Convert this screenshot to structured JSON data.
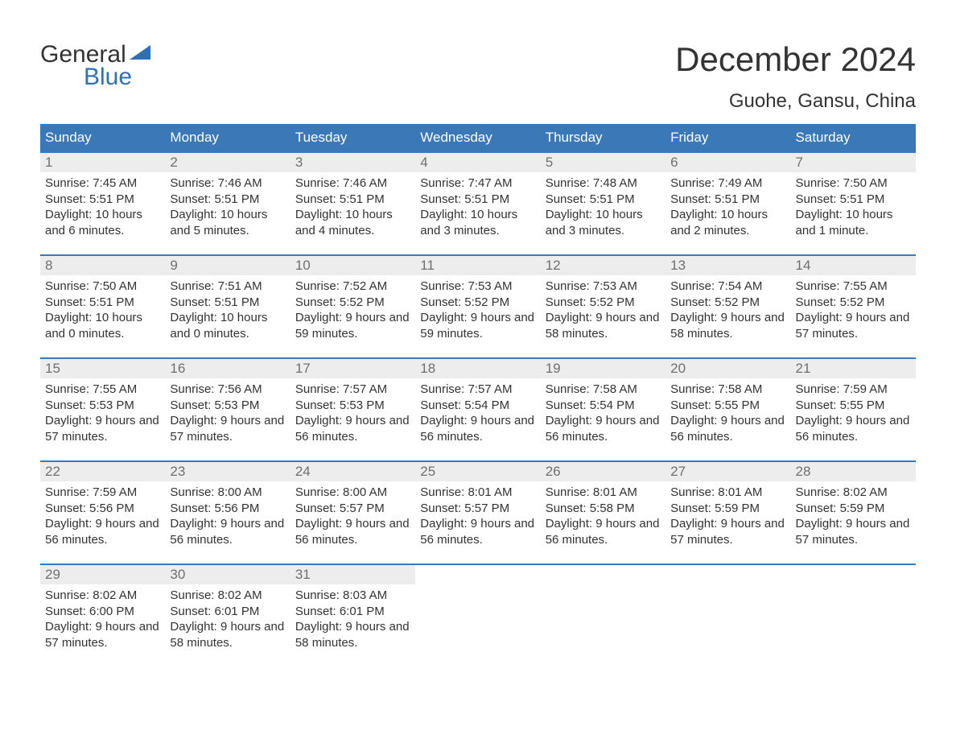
{
  "logo": {
    "text1": "General",
    "text2": "Blue",
    "accent_color": "#2f6fb3"
  },
  "title": "December 2024",
  "location": "Guohe, Gansu, China",
  "colors": {
    "header_bg": "#3a78b8",
    "header_text": "#ffffff",
    "daynum_bg": "#ededed",
    "daynum_text": "#6f6f6f",
    "body_text": "#333333",
    "page_bg": "#ffffff",
    "week_border": "#3a78b8"
  },
  "typography": {
    "title_fontsize": 42,
    "location_fontsize": 24,
    "header_fontsize": 17,
    "daynum_fontsize": 17,
    "body_fontsize": 15,
    "font_family": "Arial, Helvetica, sans-serif"
  },
  "day_headers": [
    "Sunday",
    "Monday",
    "Tuesday",
    "Wednesday",
    "Thursday",
    "Friday",
    "Saturday"
  ],
  "labels": {
    "sunrise": "Sunrise: ",
    "sunset": "Sunset: ",
    "daylight": "Daylight: "
  },
  "weeks": [
    [
      {
        "num": "1",
        "sunrise": "7:45 AM",
        "sunset": "5:51 PM",
        "daylight": "10 hours and 6 minutes."
      },
      {
        "num": "2",
        "sunrise": "7:46 AM",
        "sunset": "5:51 PM",
        "daylight": "10 hours and 5 minutes."
      },
      {
        "num": "3",
        "sunrise": "7:46 AM",
        "sunset": "5:51 PM",
        "daylight": "10 hours and 4 minutes."
      },
      {
        "num": "4",
        "sunrise": "7:47 AM",
        "sunset": "5:51 PM",
        "daylight": "10 hours and 3 minutes."
      },
      {
        "num": "5",
        "sunrise": "7:48 AM",
        "sunset": "5:51 PM",
        "daylight": "10 hours and 3 minutes."
      },
      {
        "num": "6",
        "sunrise": "7:49 AM",
        "sunset": "5:51 PM",
        "daylight": "10 hours and 2 minutes."
      },
      {
        "num": "7",
        "sunrise": "7:50 AM",
        "sunset": "5:51 PM",
        "daylight": "10 hours and 1 minute."
      }
    ],
    [
      {
        "num": "8",
        "sunrise": "7:50 AM",
        "sunset": "5:51 PM",
        "daylight": "10 hours and 0 minutes."
      },
      {
        "num": "9",
        "sunrise": "7:51 AM",
        "sunset": "5:51 PM",
        "daylight": "10 hours and 0 minutes."
      },
      {
        "num": "10",
        "sunrise": "7:52 AM",
        "sunset": "5:52 PM",
        "daylight": "9 hours and 59 minutes."
      },
      {
        "num": "11",
        "sunrise": "7:53 AM",
        "sunset": "5:52 PM",
        "daylight": "9 hours and 59 minutes."
      },
      {
        "num": "12",
        "sunrise": "7:53 AM",
        "sunset": "5:52 PM",
        "daylight": "9 hours and 58 minutes."
      },
      {
        "num": "13",
        "sunrise": "7:54 AM",
        "sunset": "5:52 PM",
        "daylight": "9 hours and 58 minutes."
      },
      {
        "num": "14",
        "sunrise": "7:55 AM",
        "sunset": "5:52 PM",
        "daylight": "9 hours and 57 minutes."
      }
    ],
    [
      {
        "num": "15",
        "sunrise": "7:55 AM",
        "sunset": "5:53 PM",
        "daylight": "9 hours and 57 minutes."
      },
      {
        "num": "16",
        "sunrise": "7:56 AM",
        "sunset": "5:53 PM",
        "daylight": "9 hours and 57 minutes."
      },
      {
        "num": "17",
        "sunrise": "7:57 AM",
        "sunset": "5:53 PM",
        "daylight": "9 hours and 56 minutes."
      },
      {
        "num": "18",
        "sunrise": "7:57 AM",
        "sunset": "5:54 PM",
        "daylight": "9 hours and 56 minutes."
      },
      {
        "num": "19",
        "sunrise": "7:58 AM",
        "sunset": "5:54 PM",
        "daylight": "9 hours and 56 minutes."
      },
      {
        "num": "20",
        "sunrise": "7:58 AM",
        "sunset": "5:55 PM",
        "daylight": "9 hours and 56 minutes."
      },
      {
        "num": "21",
        "sunrise": "7:59 AM",
        "sunset": "5:55 PM",
        "daylight": "9 hours and 56 minutes."
      }
    ],
    [
      {
        "num": "22",
        "sunrise": "7:59 AM",
        "sunset": "5:56 PM",
        "daylight": "9 hours and 56 minutes."
      },
      {
        "num": "23",
        "sunrise": "8:00 AM",
        "sunset": "5:56 PM",
        "daylight": "9 hours and 56 minutes."
      },
      {
        "num": "24",
        "sunrise": "8:00 AM",
        "sunset": "5:57 PM",
        "daylight": "9 hours and 56 minutes."
      },
      {
        "num": "25",
        "sunrise": "8:01 AM",
        "sunset": "5:57 PM",
        "daylight": "9 hours and 56 minutes."
      },
      {
        "num": "26",
        "sunrise": "8:01 AM",
        "sunset": "5:58 PM",
        "daylight": "9 hours and 56 minutes."
      },
      {
        "num": "27",
        "sunrise": "8:01 AM",
        "sunset": "5:59 PM",
        "daylight": "9 hours and 57 minutes."
      },
      {
        "num": "28",
        "sunrise": "8:02 AM",
        "sunset": "5:59 PM",
        "daylight": "9 hours and 57 minutes."
      }
    ],
    [
      {
        "num": "29",
        "sunrise": "8:02 AM",
        "sunset": "6:00 PM",
        "daylight": "9 hours and 57 minutes."
      },
      {
        "num": "30",
        "sunrise": "8:02 AM",
        "sunset": "6:01 PM",
        "daylight": "9 hours and 58 minutes."
      },
      {
        "num": "31",
        "sunrise": "8:03 AM",
        "sunset": "6:01 PM",
        "daylight": "9 hours and 58 minutes."
      },
      {
        "empty": true
      },
      {
        "empty": true
      },
      {
        "empty": true
      },
      {
        "empty": true
      }
    ]
  ]
}
